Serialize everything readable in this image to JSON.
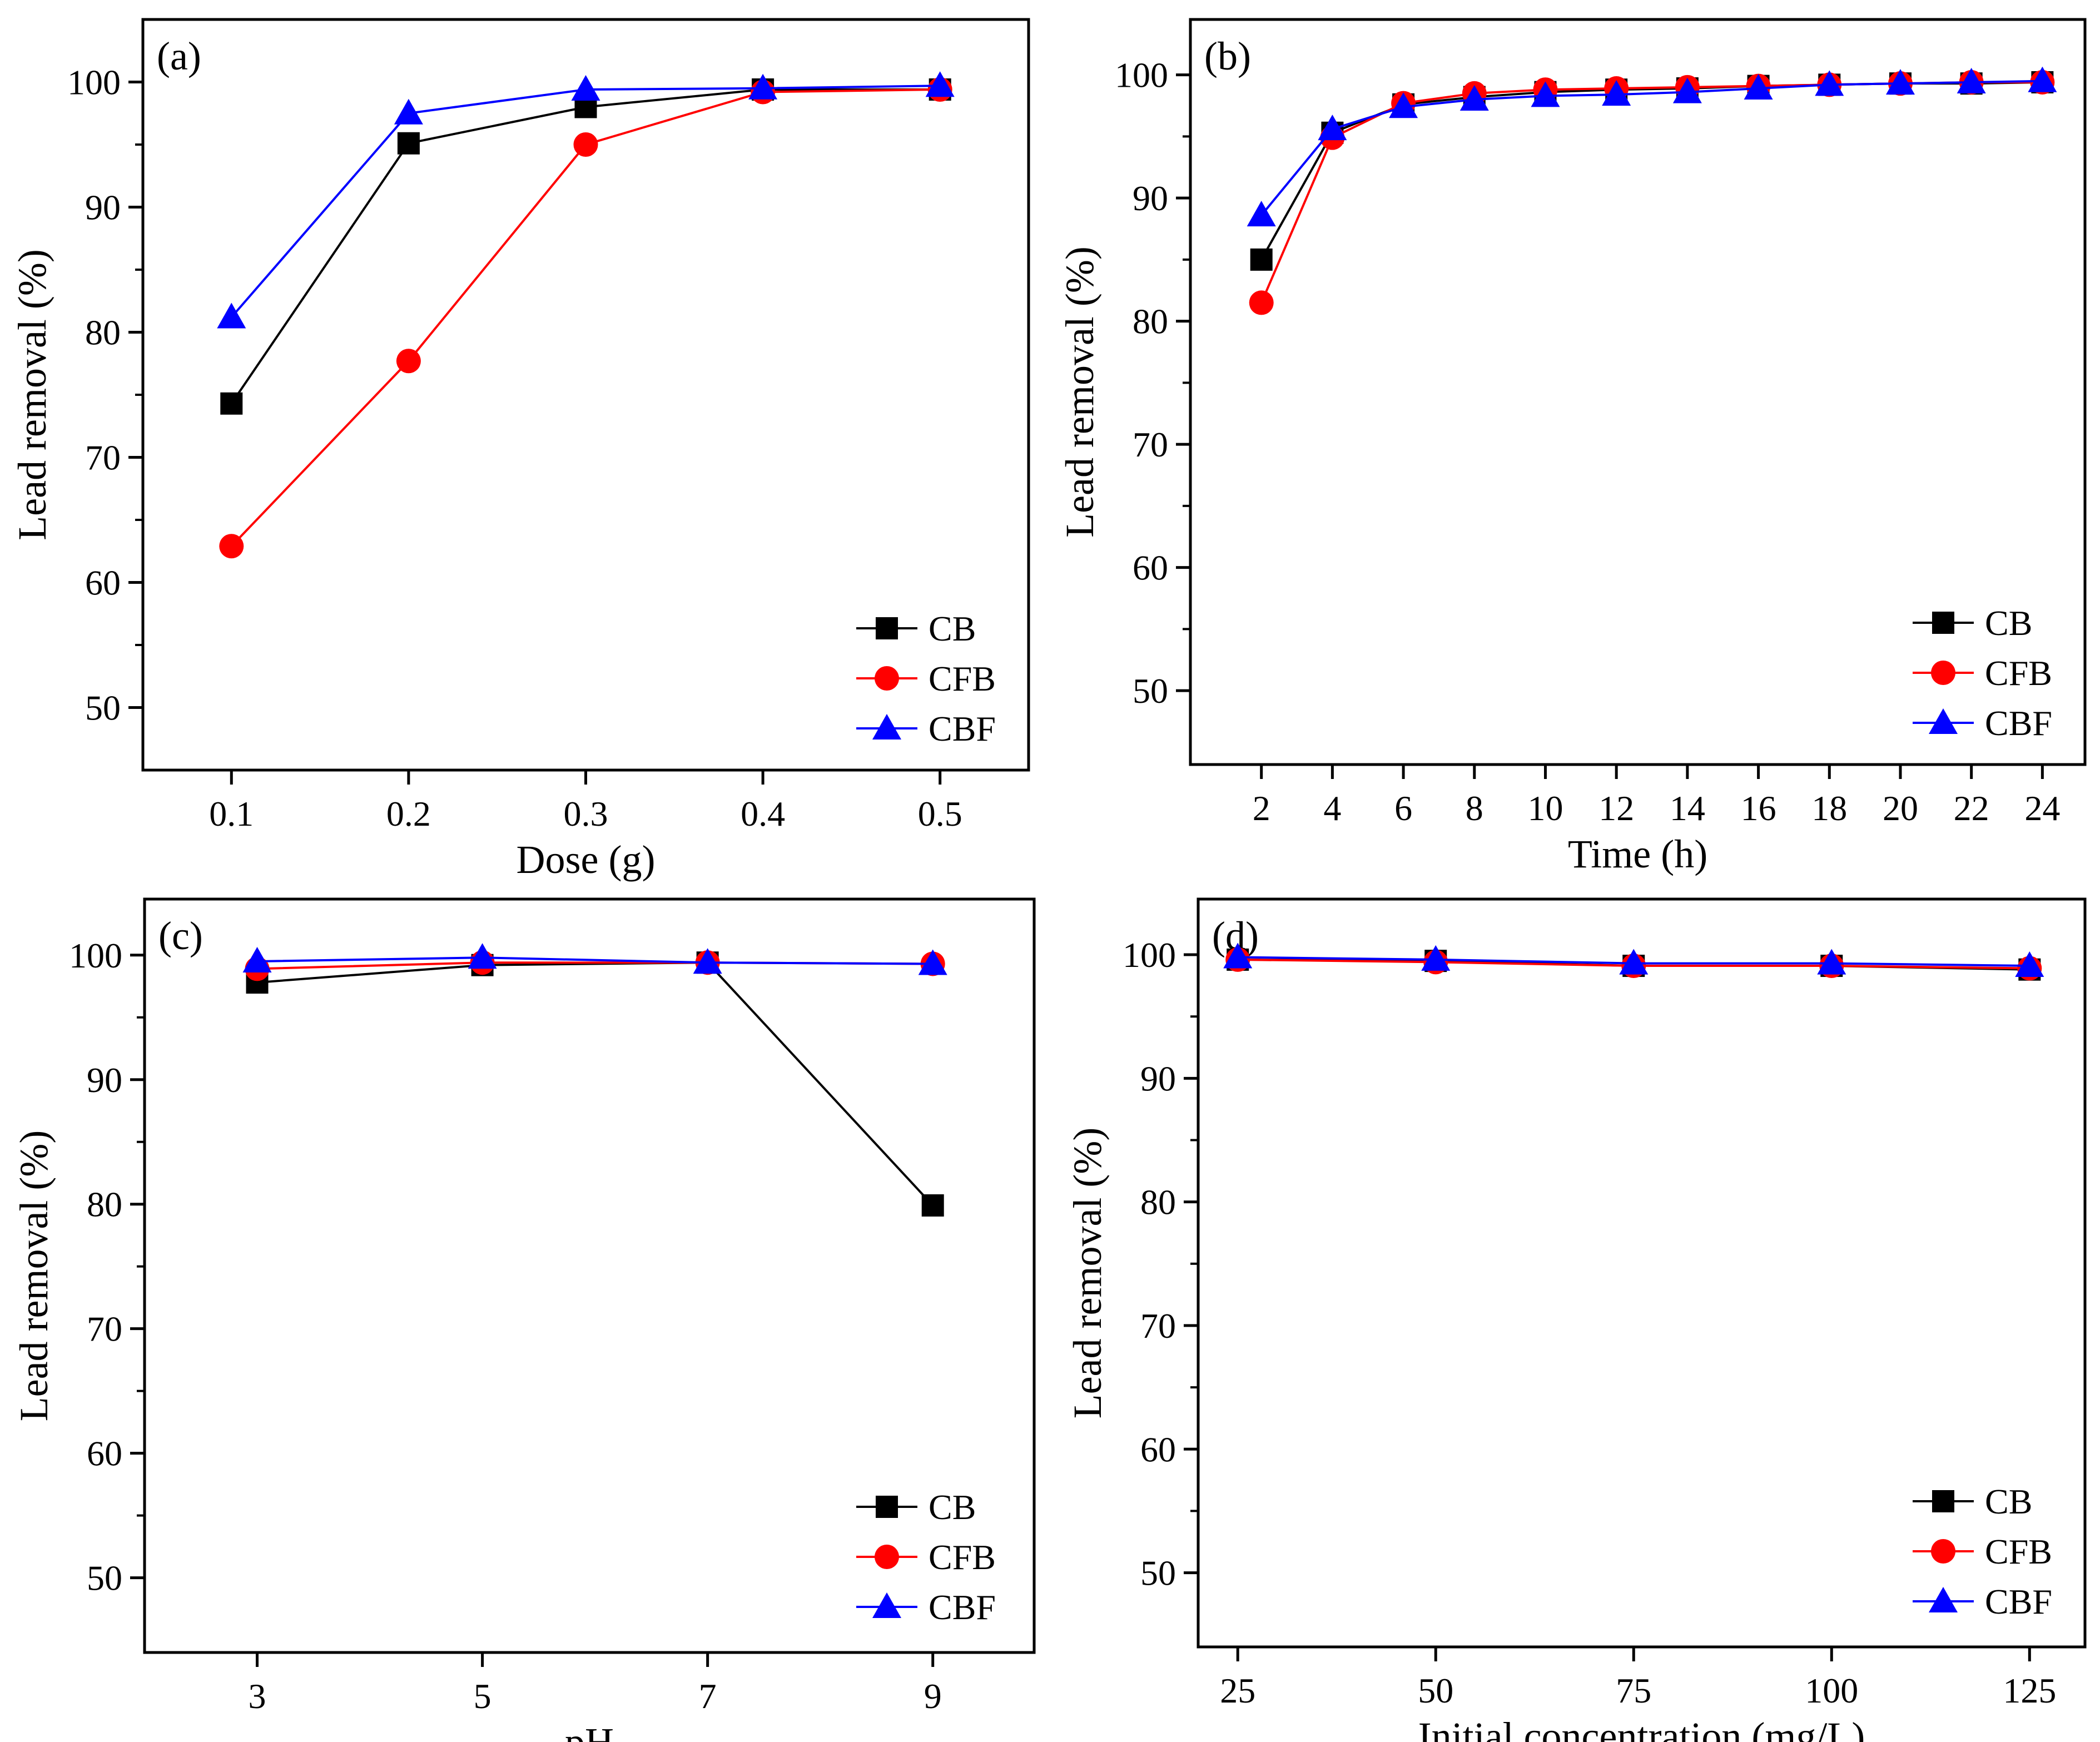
{
  "figure": {
    "series_colors": {
      "CB": "#000000",
      "CFB": "#ff0000",
      "CBF": "#0000ff"
    },
    "series_markers": {
      "CB": "square",
      "CFB": "circle",
      "CBF": "triangle"
    }
  },
  "chart_data": [
    {
      "type": "line",
      "panel_tag": "(a)",
      "xlabel": "Dose (g)",
      "ylabel": "Lead removal (%)",
      "x": [
        0.1,
        0.2,
        0.3,
        0.4,
        0.5
      ],
      "x_ticks": [
        "0.1",
        "0.2",
        "0.3",
        "0.4",
        "0.5"
      ],
      "xlim": [
        0.05,
        0.55
      ],
      "y_ticks": [
        "50",
        "60",
        "70",
        "80",
        "90",
        "100"
      ],
      "ylim": [
        45,
        105
      ],
      "legend": "bottom-right",
      "grid": false,
      "series": [
        {
          "name": "CB",
          "values": [
            74.3,
            95.1,
            98.0,
            99.4,
            99.4
          ]
        },
        {
          "name": "CFB",
          "values": [
            62.9,
            77.7,
            95.0,
            99.2,
            99.4
          ]
        },
        {
          "name": "CBF",
          "values": [
            81.2,
            97.5,
            99.4,
            99.5,
            99.7
          ]
        }
      ]
    },
    {
      "type": "line",
      "panel_tag": "(b)",
      "xlabel": "Time (h)",
      "ylabel": "Lead removal (%)",
      "x": [
        2,
        4,
        6,
        8,
        10,
        12,
        14,
        16,
        18,
        20,
        22,
        24
      ],
      "x_ticks": [
        "2",
        "4",
        "6",
        "8",
        "10",
        "12",
        "14",
        "16",
        "18",
        "20",
        "22",
        "24"
      ],
      "xlim": [
        0,
        25.2
      ],
      "y_ticks": [
        "50",
        "60",
        "70",
        "80",
        "90",
        "100"
      ],
      "ylim": [
        44,
        104.5
      ],
      "legend": "bottom-right",
      "grid": false,
      "series": [
        {
          "name": "CB",
          "values": [
            85.0,
            95.3,
            97.6,
            98.2,
            98.6,
            98.8,
            98.9,
            99.1,
            99.2,
            99.3,
            99.3,
            99.4
          ]
        },
        {
          "name": "CFB",
          "values": [
            81.5,
            94.9,
            97.7,
            98.5,
            98.8,
            98.9,
            99.0,
            99.1,
            99.2,
            99.3,
            99.4,
            99.4
          ]
        },
        {
          "name": "CBF",
          "values": [
            88.6,
            95.6,
            97.4,
            98.0,
            98.3,
            98.4,
            98.6,
            98.9,
            99.2,
            99.3,
            99.4,
            99.5
          ]
        }
      ]
    },
    {
      "type": "line",
      "panel_tag": "(c)",
      "xlabel": "pH",
      "ylabel": "Lead removal (%)",
      "x": [
        3,
        5,
        7,
        9
      ],
      "x_ticks": [
        "3",
        "5",
        "7",
        "9"
      ],
      "xlim": [
        2.0,
        9.9
      ],
      "y_ticks": [
        "50",
        "60",
        "70",
        "80",
        "90",
        "100"
      ],
      "ylim": [
        44,
        104.5
      ],
      "legend": "bottom-right",
      "grid": false,
      "series": [
        {
          "name": "CB",
          "values": [
            97.8,
            99.2,
            99.4,
            79.9
          ]
        },
        {
          "name": "CFB",
          "values": [
            98.9,
            99.4,
            99.4,
            99.3
          ]
        },
        {
          "name": "CBF",
          "values": [
            99.5,
            99.8,
            99.4,
            99.3
          ]
        }
      ]
    },
    {
      "type": "line",
      "panel_tag": "(d)",
      "xlabel": "Initial concentration (mg/L)",
      "ylabel": "Lead removal (%)",
      "x": [
        25,
        50,
        75,
        100,
        125
      ],
      "x_ticks": [
        "25",
        "50",
        "75",
        "100",
        "125"
      ],
      "xlim": [
        20,
        132
      ],
      "y_ticks": [
        "50",
        "60",
        "70",
        "80",
        "90",
        "100"
      ],
      "ylim": [
        44,
        104.5
      ],
      "legend": "bottom-right",
      "grid": false,
      "series": [
        {
          "name": "CB",
          "values": [
            99.6,
            99.5,
            99.1,
            99.1,
            98.8
          ]
        },
        {
          "name": "CFB",
          "values": [
            99.6,
            99.4,
            99.1,
            99.1,
            98.9
          ]
        },
        {
          "name": "CBF",
          "values": [
            99.8,
            99.6,
            99.3,
            99.3,
            99.1
          ]
        }
      ]
    }
  ]
}
